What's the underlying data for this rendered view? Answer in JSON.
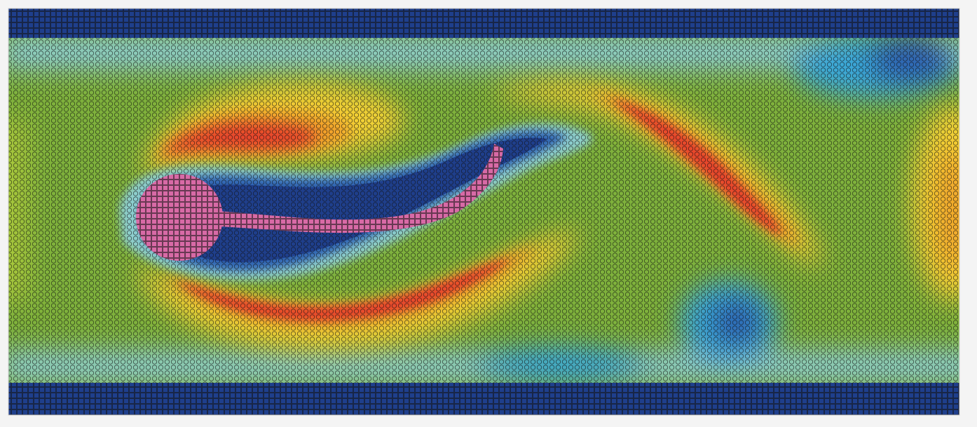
{
  "scene": {
    "subject": "particle-fluid-flow-past-cylinder-with-flexible-filament",
    "colormap": [
      "#1f3f8c",
      "#2e64b3",
      "#3aa8d8",
      "#8ecfcf",
      "#7fb23c",
      "#a9c83a",
      "#f4d234",
      "#f2a32a",
      "#e8452b",
      "#d22a22"
    ],
    "wall_color": "#1f3f8c",
    "solid_body_color": "#d86aa6",
    "particle_outline": "#1b1b1b"
  }
}
